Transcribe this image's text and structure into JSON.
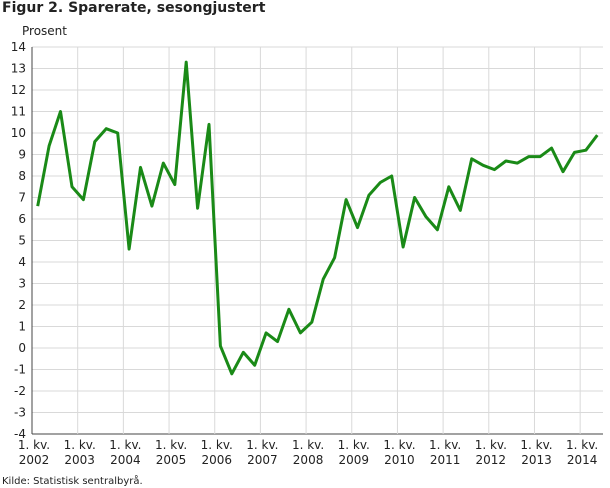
{
  "chart_data": {
    "type": "line",
    "title": "Figur 2. Sparerate, sesongjustert",
    "ylabel": "Prosent",
    "source": "Kilde: Statistisk sentralbyrå.",
    "ylim": [
      -4,
      14
    ],
    "yticks": [
      14,
      13,
      12,
      11,
      10,
      9,
      8,
      7,
      6,
      5,
      4,
      3,
      2,
      1,
      0,
      -1,
      -2,
      -3,
      -4
    ],
    "x_start_label": "2002 1. kv.",
    "x_labels": [
      {
        "quarter_label": "1. kv.",
        "year": "2002"
      },
      {
        "quarter_label": "1. kv.",
        "year": "2003"
      },
      {
        "quarter_label": "1. kv.",
        "year": "2004"
      },
      {
        "quarter_label": "1. kv.",
        "year": "2005"
      },
      {
        "quarter_label": "1. kv.",
        "year": "2006"
      },
      {
        "quarter_label": "1. kv.",
        "year": "2007"
      },
      {
        "quarter_label": "1. kv.",
        "year": "2008"
      },
      {
        "quarter_label": "1. kv.",
        "year": "2009"
      },
      {
        "quarter_label": "1. kv.",
        "year": "2010"
      },
      {
        "quarter_label": "1. kv.",
        "year": "2011"
      },
      {
        "quarter_label": "1. kv.",
        "year": "2012"
      },
      {
        "quarter_label": "1. kv.",
        "year": "2013"
      },
      {
        "quarter_label": "1. kv.",
        "year": "2014"
      }
    ],
    "grid": true,
    "series": [
      {
        "color": "#1a8a17",
        "values": [
          6.6,
          9.4,
          11.0,
          7.5,
          6.9,
          9.6,
          10.2,
          10.0,
          4.6,
          8.4,
          6.6,
          8.6,
          7.6,
          13.3,
          6.5,
          10.4,
          0.1,
          -1.2,
          -0.2,
          -0.8,
          0.7,
          0.3,
          1.8,
          0.7,
          1.2,
          3.2,
          4.2,
          6.9,
          5.6,
          7.1,
          7.7,
          8.0,
          4.7,
          7.0,
          6.1,
          5.5,
          7.5,
          6.4,
          8.8,
          8.5,
          8.3,
          8.7,
          8.6,
          8.9,
          8.9,
          9.3,
          8.2,
          9.1,
          9.2,
          9.9
        ]
      }
    ]
  }
}
